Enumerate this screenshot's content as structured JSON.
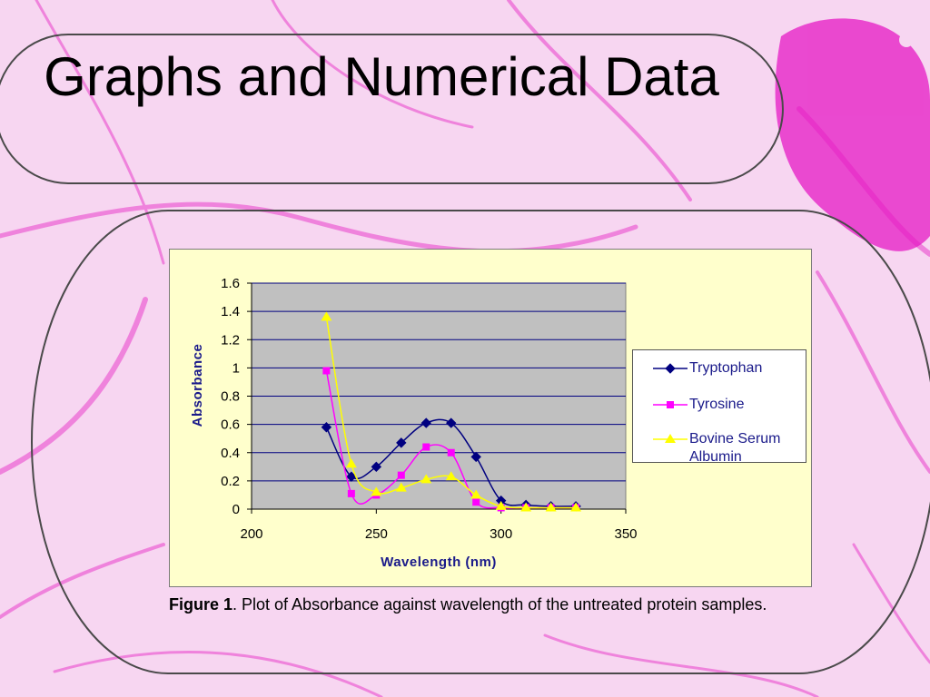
{
  "slide": {
    "title": "Graphs and Numerical Data"
  },
  "caption": {
    "lead": "Figure 1",
    "text": ". Plot of Absorbance against wavelength of the untreated protein samples."
  },
  "colors": {
    "plot_background": "#c0c0c0",
    "panel_background": "#ffffcc",
    "gridline": "#000080",
    "axis_text": "#1a1a8a",
    "slide_background": "#f9d5f2",
    "vein_color": "#e81ac2"
  },
  "chart_data": {
    "type": "line",
    "title": "",
    "xlabel": "Wavelength (nm)",
    "ylabel": "Absorbance",
    "xlim": [
      200,
      350
    ],
    "ylim": [
      0,
      1.6
    ],
    "xticks": [
      "200",
      "250",
      "300",
      "350"
    ],
    "yticks": [
      "0",
      "0.2",
      "0.4",
      "0.6",
      "0.8",
      "1",
      "1.2",
      "1.4",
      "1.6"
    ],
    "grid": "horizontal",
    "legend_position": "right",
    "x": [
      230,
      240,
      250,
      260,
      270,
      280,
      290,
      300,
      310,
      320,
      330
    ],
    "series": [
      {
        "name": "Tryptophan",
        "color": "#000080",
        "marker": "diamond",
        "values": [
          0.58,
          0.23,
          0.3,
          0.47,
          0.61,
          0.61,
          0.37,
          0.06,
          0.03,
          0.02,
          0.02
        ]
      },
      {
        "name": "Tyrosine",
        "color": "#ff00ff",
        "marker": "square",
        "values": [
          0.98,
          0.11,
          0.1,
          0.24,
          0.44,
          0.4,
          0.05,
          0.01,
          0.01,
          0.01,
          0.01
        ]
      },
      {
        "name": "Bovine Serum Albumin",
        "color": "#ffff00",
        "marker": "triangle",
        "values": [
          1.36,
          0.32,
          0.12,
          0.15,
          0.21,
          0.23,
          0.1,
          0.02,
          0.01,
          0.01,
          0.01
        ]
      }
    ]
  }
}
